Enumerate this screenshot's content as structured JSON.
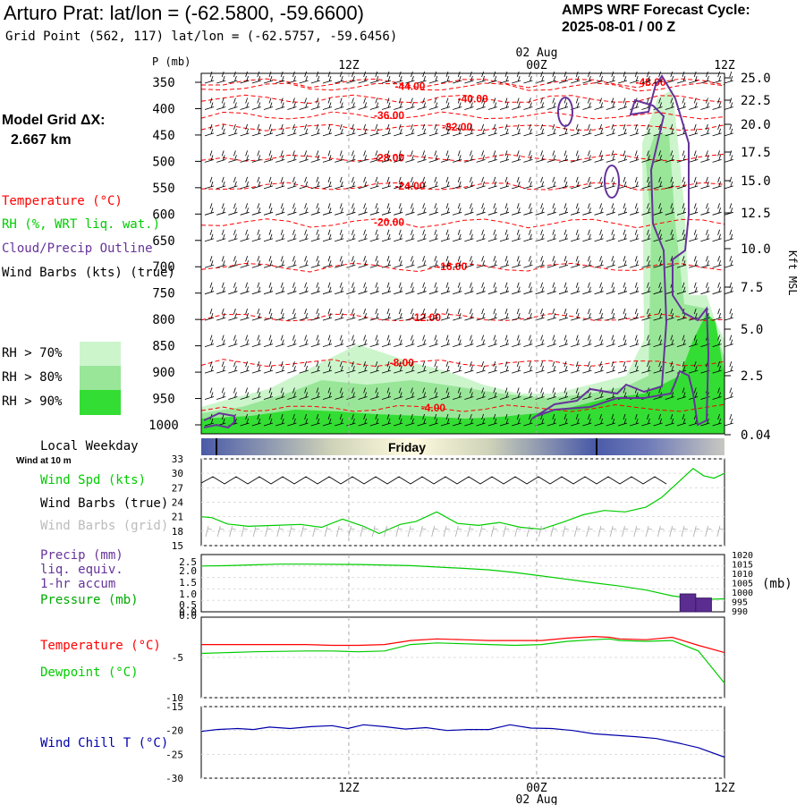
{
  "header": {
    "title": "Arturo Prat:  lat/lon = (-62.5800, -59.6600)",
    "subtitle": "Grid Point (562, 117) lat/lon = (-62.5757, -59.6456)",
    "cycle_label": "AMPS WRF Forecast Cycle:",
    "cycle_value": "2025-08-01 / 00  Z"
  },
  "model_grid": {
    "label": "Model Grid ΔX:",
    "value": "2.667 km"
  },
  "legend": {
    "temperature": "Temperature (°C)",
    "rh": "RH (%, WRT liq. wat.)",
    "cloud": "Cloud/Precip Outline",
    "wind_barbs": "Wind Barbs (kts) (true)",
    "rh70": "RH > 70%",
    "rh80": "RH > 80%",
    "rh90": "RH > 90%"
  },
  "colors": {
    "temperature": "#ff0000",
    "rh_line": "#00cc00",
    "cloud": "#663399",
    "rh70": "#ccf5cc",
    "rh80": "#99e699",
    "rh90": "#33dd33",
    "wind_chill": "#0000aa",
    "weekday_band": "#4a5aa8",
    "weekday_light": "#fffbe0"
  },
  "time_axis": {
    "top_labels": [
      "12Z",
      "00Z",
      "12Z"
    ],
    "top_date": "02 Aug",
    "bottom_labels": [
      "12Z",
      "00Z",
      "12Z"
    ],
    "bottom_date": "02 Aug"
  },
  "local_weekday": {
    "label": "Local Weekday",
    "day": "Friday"
  },
  "wind_panel": {
    "note": "Wind at 10 m",
    "spd_label": "Wind Spd (kts)",
    "barbs_true_label": "Wind Barbs (true)",
    "barbs_grid_label": "Wind Barbs (grid)"
  },
  "precip_panel": {
    "line1": "Precip (mm)",
    "line2": "liq. equiv.",
    "line3": "1-hr accum",
    "line4": "Pressure (mb)",
    "right_unit": "(mb)"
  },
  "temp_panel": {
    "temp_label": "Temperature (°C)",
    "dew_label": "Dewpoint (°C)"
  },
  "chill_panel": {
    "label": "Wind Chill T (°C)"
  },
  "chart_data": [
    {
      "type": "area",
      "name": "sounding-cross-section",
      "y_axis_title": "P (mb)",
      "y_ticks": [
        "350",
        "400",
        "450",
        "500",
        "550",
        "600",
        "650",
        "700",
        "750",
        "800",
        "850",
        "900",
        "950",
        "1000"
      ],
      "right_axis_title": "Kft MSL",
      "right_ticks": [
        "25.0",
        "22.5",
        "20.0",
        "17.5",
        "15.0",
        "12.5",
        "10.0",
        "7.5",
        "5.0",
        "2.5",
        "0.04"
      ],
      "temperature_contours": [
        {
          "label": "-44.00",
          "x": 0.37,
          "p": 358
        },
        {
          "label": "-48.00",
          "x": 0.83,
          "p": 350
        },
        {
          "label": "-40.00",
          "x": 0.49,
          "p": 381
        },
        {
          "label": "-36.00",
          "x": 0.33,
          "p": 413
        },
        {
          "label": "-32.00",
          "x": 0.46,
          "p": 435
        },
        {
          "label": "-28.00",
          "x": 0.33,
          "p": 493
        },
        {
          "label": "-24.00",
          "x": 0.37,
          "p": 547
        },
        {
          "label": "-20.00",
          "x": 0.33,
          "p": 616
        },
        {
          "label": "-16.00",
          "x": 0.45,
          "p": 700
        },
        {
          "label": "-12.00",
          "x": 0.4,
          "p": 796
        },
        {
          "label": "-8.00",
          "x": 0.36,
          "p": 882
        },
        {
          "label": "-4.00",
          "x": 0.42,
          "p": 968
        }
      ]
    },
    {
      "type": "line",
      "name": "wind-speed",
      "y_ticks": [
        "33",
        "30",
        "27",
        "24",
        "21",
        "18",
        "15"
      ],
      "ylim": [
        15,
        33
      ],
      "x": [
        0,
        0.02,
        0.05,
        0.09,
        0.14,
        0.19,
        0.23,
        0.27,
        0.31,
        0.34,
        0.38,
        0.41,
        0.45,
        0.49,
        0.53,
        0.57,
        0.61,
        0.65,
        0.69,
        0.73,
        0.77,
        0.81,
        0.85,
        0.88,
        0.91,
        0.94,
        0.96,
        0.98,
        1.0
      ],
      "values": [
        21,
        20.8,
        19.5,
        19,
        19.2,
        19.4,
        18.8,
        20.5,
        19,
        17.5,
        19.4,
        20,
        22,
        19.6,
        19.2,
        19.8,
        18.8,
        18.4,
        19.8,
        21.4,
        22.3,
        22,
        23,
        25,
        28,
        31,
        29.5,
        29,
        30
      ]
    },
    {
      "type": "line",
      "name": "pressure-precip",
      "y_ticks": [
        "2.5",
        "2.0",
        "1.5",
        "1.0",
        "0.5",
        "0.0",
        "0.0"
      ],
      "right_ticks": [
        "1020",
        "1015",
        "1010",
        "1005",
        "1000",
        "995",
        "990"
      ],
      "ylim": [
        0,
        2.5
      ],
      "pressure_x": [
        0,
        0.05,
        0.1,
        0.15,
        0.2,
        0.3,
        0.4,
        0.5,
        0.55,
        0.6,
        0.65,
        0.7,
        0.75,
        0.8,
        0.85,
        0.9,
        0.95,
        1.0
      ],
      "pressure_mb": [
        1014,
        1014.2,
        1014.6,
        1015,
        1015,
        1014.8,
        1014.2,
        1012.8,
        1012,
        1010.6,
        1008.8,
        1007,
        1005.2,
        1003.5,
        1001.4,
        998.4,
        996.4,
        996.8
      ],
      "precip_bars": [
        {
          "x0": 0.915,
          "x1": 0.945,
          "mm": 0.78
        },
        {
          "x0": 0.945,
          "x1": 0.975,
          "mm": 0.6
        }
      ]
    },
    {
      "type": "line",
      "name": "temperature-dewpoint",
      "y_ticks": [
        "-5",
        "-10"
      ],
      "ylim": [
        -10,
        0
      ],
      "x": [
        0,
        0.1,
        0.2,
        0.25,
        0.3,
        0.35,
        0.4,
        0.45,
        0.5,
        0.55,
        0.6,
        0.65,
        0.7,
        0.75,
        0.78,
        0.8,
        0.85,
        0.9,
        0.95,
        1.0
      ],
      "temperature": [
        -3.4,
        -3.4,
        -3.4,
        -3.5,
        -3.5,
        -3.4,
        -2.9,
        -2.7,
        -2.8,
        -2.9,
        -2.9,
        -2.9,
        -2.6,
        -2.4,
        -2.5,
        -2.7,
        -2.8,
        -2.5,
        -3.5,
        -4.4
      ],
      "dewpoint": [
        -4.5,
        -4.3,
        -4.2,
        -4.2,
        -4.3,
        -4.2,
        -3.4,
        -3.2,
        -3.3,
        -3.4,
        -3.5,
        -3.4,
        -3.0,
        -2.8,
        -2.7,
        -2.9,
        -3.0,
        -2.9,
        -4.2,
        -8.2
      ]
    },
    {
      "type": "line",
      "name": "wind-chill",
      "y_ticks": [
        "-15",
        "-20",
        "-25",
        "-30"
      ],
      "ylim": [
        -30,
        -15
      ],
      "x": [
        0,
        0.03,
        0.07,
        0.1,
        0.13,
        0.17,
        0.21,
        0.25,
        0.28,
        0.31,
        0.35,
        0.39,
        0.43,
        0.47,
        0.51,
        0.55,
        0.59,
        0.63,
        0.67,
        0.71,
        0.75,
        0.79,
        0.83,
        0.87,
        0.91,
        0.95,
        1.0
      ],
      "values": [
        -20.2,
        -19.8,
        -19.6,
        -19.8,
        -19.3,
        -19.6,
        -19.2,
        -19.0,
        -19.6,
        -18.8,
        -19.2,
        -19.7,
        -19.4,
        -20.0,
        -19.8,
        -19.8,
        -18.8,
        -19.5,
        -19.6,
        -20.0,
        -20.7,
        -21.0,
        -21.3,
        -21.7,
        -22.6,
        -23.6,
        -25.6
      ]
    }
  ]
}
